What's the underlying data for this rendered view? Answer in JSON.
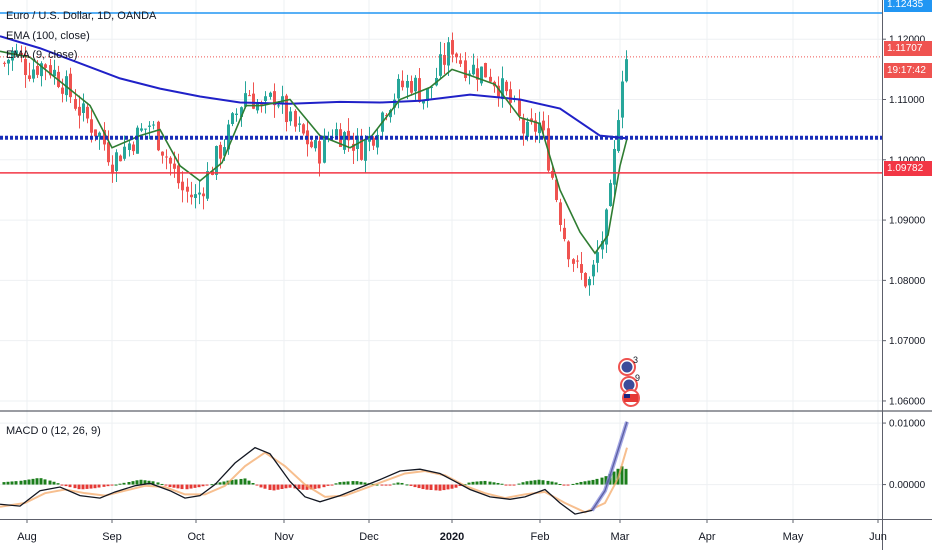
{
  "header": {
    "symbol_title": "Euro / U.S. Dollar, 1D, OANDA",
    "ema_slow": "EMA (100, close)",
    "ema_fast": "EMA (9, close)",
    "macd_title": "MACD 0 (12, 26, 9)"
  },
  "price_tags": {
    "top_line": "1.12435",
    "last_price": "1.11707",
    "countdown": "19:17:42",
    "support_line": "1.09782"
  },
  "events": {
    "event_count_1": "3",
    "event_count_2": "9"
  },
  "colors": {
    "up": "#26a69a",
    "down": "#ef5350",
    "ema_slow": "#2021c8",
    "ema_fast": "#2f7d32",
    "top_line": "#2196f3",
    "support_line": "#f23645",
    "dotted_line": "#1a2eb8",
    "macd_up": "#1b7e1b",
    "macd_down": "#e53935"
  },
  "chart_data": [
    {
      "type": "candlestick",
      "title": "Euro / U.S. Dollar, 1D, OANDA",
      "ylim": [
        1.0585,
        1.1265
      ],
      "y_ticks": [
        "1.12000",
        "1.11000",
        "1.10000",
        "1.09000",
        "1.08000",
        "1.07000",
        "1.06000"
      ],
      "x_ticks": [
        "Aug",
        "Sep",
        "Oct",
        "Nov",
        "Dec",
        "2020",
        "Feb",
        "Mar",
        "Apr",
        "May",
        "Jun"
      ],
      "horizontal_lines": [
        1.12435,
        1.10365,
        1.09782
      ],
      "approx_close_path": [
        {
          "x": "Aug",
          "y": 1.112
        },
        {
          "x": "Sep",
          "y": 1.101
        },
        {
          "x": "Oct",
          "y": 1.094
        },
        {
          "x": "Nov",
          "y": 1.107
        },
        {
          "x": "Dec",
          "y": 1.101
        },
        {
          "x": "2020",
          "y": 1.118
        },
        {
          "x": "Feb",
          "y": 1.104
        },
        {
          "x": "Feb-20",
          "y": 1.078
        },
        {
          "x": "Mar",
          "y": 1.11707
        }
      ],
      "series": [
        {
          "name": "EMA (100, close)",
          "values": [
            1.1195,
            1.1118,
            1.1105,
            1.1105,
            1.1098,
            1.1098,
            1.1096,
            1.1092,
            1.104
          ]
        },
        {
          "name": "EMA (9, close)",
          "values": [
            1.1175,
            1.1028,
            1.095,
            1.1098,
            1.103,
            1.1168,
            1.107,
            1.081,
            1.1035
          ]
        }
      ]
    },
    {
      "type": "line",
      "title": "MACD 0 (12, 26, 9)",
      "ylim": [
        -0.0056,
        0.0118
      ],
      "y_ticks": [
        "0.01000",
        "0.00000"
      ],
      "series": [
        {
          "name": "MACD",
          "values": [
            -0.0032,
            0.001,
            -0.002,
            0.0058,
            -0.0028,
            0.0025,
            -0.0033,
            -0.0048,
            0.0092
          ]
        },
        {
          "name": "Signal",
          "values": [
            -0.0036,
            0.0008,
            -0.0022,
            0.0052,
            -0.0026,
            0.002,
            -0.003,
            -0.005,
            0.006
          ]
        }
      ]
    }
  ]
}
